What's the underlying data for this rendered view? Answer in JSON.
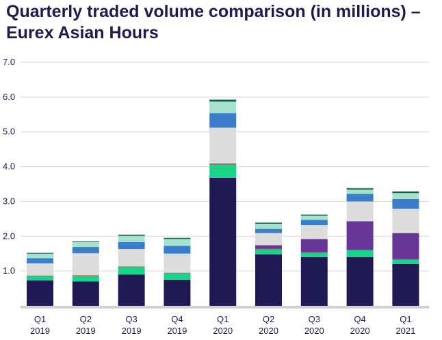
{
  "chart_data": {
    "type": "bar",
    "stacked": true,
    "title": "Quarterly traded volume comparison (in millions) – Eurex Asian Hours",
    "xlabel": "",
    "ylabel": "",
    "ylim": [
      0,
      7
    ],
    "yticks": [
      "1.0",
      "2.0",
      "3.0",
      "4.0",
      "5.0",
      "6.0",
      "7.0"
    ],
    "ytick_values": [
      1,
      2,
      3,
      4,
      5,
      6,
      7
    ],
    "grid": true,
    "legend": "none",
    "categories": [
      {
        "q": "Q1",
        "y": "2019"
      },
      {
        "q": "Q2",
        "y": "2019"
      },
      {
        "q": "Q3",
        "y": "2019"
      },
      {
        "q": "Q4",
        "y": "2019"
      },
      {
        "q": "Q1",
        "y": "2020"
      },
      {
        "q": "Q2",
        "y": "2020"
      },
      {
        "q": "Q3",
        "y": "2020"
      },
      {
        "q": "Q4",
        "y": "2020"
      },
      {
        "q": "Q1",
        "y": "2021"
      }
    ],
    "series": [
      {
        "color": "#201a54",
        "values": [
          0.73,
          0.7,
          0.9,
          0.75,
          3.68,
          1.48,
          1.4,
          1.4,
          1.2
        ]
      },
      {
        "color": "#18d389",
        "values": [
          0.13,
          0.17,
          0.22,
          0.18,
          0.38,
          0.15,
          0.13,
          0.2,
          0.13
        ]
      },
      {
        "color": "#e63946",
        "values": [
          0.01,
          0.01,
          0.01,
          0.02,
          0.03,
          0.01,
          0.01,
          0.01,
          0.01
        ]
      },
      {
        "color": "#6a3599",
        "values": [
          0.0,
          0.0,
          0.0,
          0.0,
          0.0,
          0.1,
          0.38,
          0.82,
          0.75
        ]
      },
      {
        "color": "#dcdcdc",
        "values": [
          0.35,
          0.63,
          0.5,
          0.55,
          1.03,
          0.35,
          0.4,
          0.57,
          0.7
        ]
      },
      {
        "color": "#3a7dc8",
        "values": [
          0.15,
          0.18,
          0.2,
          0.22,
          0.42,
          0.12,
          0.15,
          0.22,
          0.28
        ]
      },
      {
        "color": "#a6e1d0",
        "values": [
          0.13,
          0.14,
          0.18,
          0.2,
          0.33,
          0.15,
          0.12,
          0.12,
          0.17
        ]
      },
      {
        "color": "#0e5a48",
        "values": [
          0.02,
          0.02,
          0.03,
          0.03,
          0.05,
          0.03,
          0.03,
          0.04,
          0.04
        ]
      },
      {
        "color": "#aab8b6",
        "values": [
          0.01,
          0.01,
          0.01,
          0.01,
          0.02,
          0.01,
          0.01,
          0.01,
          0.02
        ]
      }
    ],
    "colors": {
      "text": "#1e1a52",
      "grid": "#d6d6d6",
      "baseline": "#cfcfcf"
    }
  }
}
